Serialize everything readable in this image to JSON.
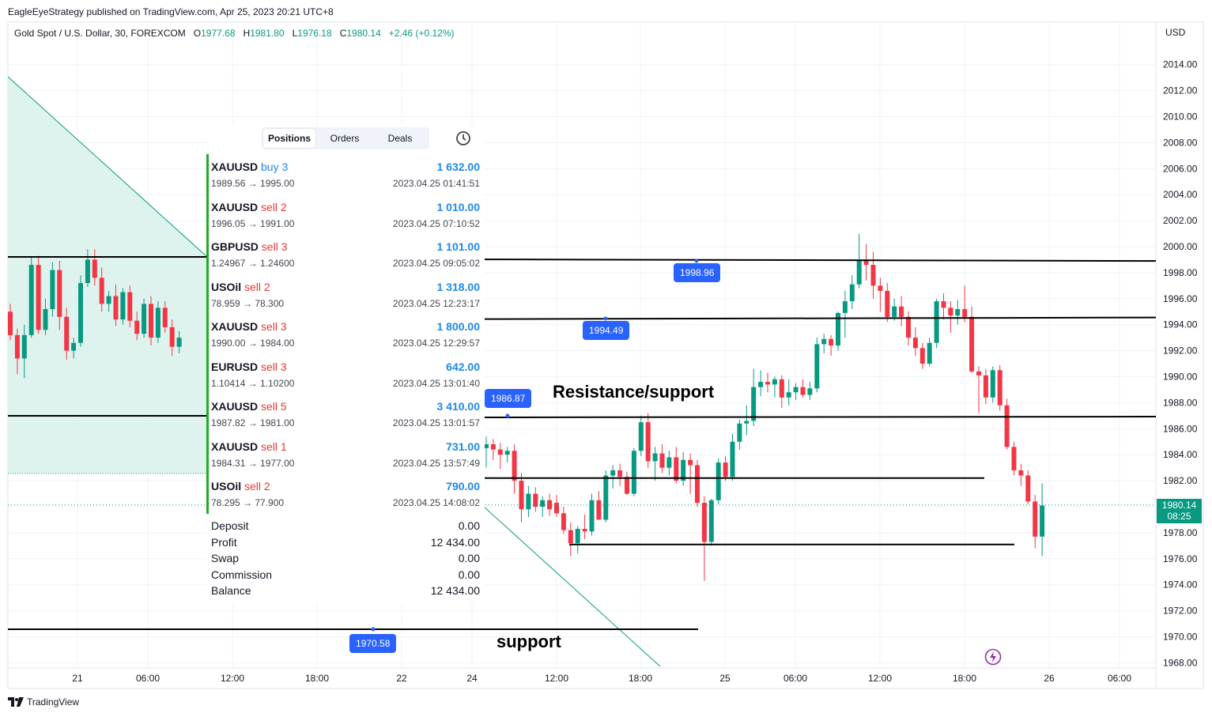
{
  "header": {
    "published": "EagleEyeStrategy published on TradingView.com, Apr 25, 2023 20:21 UTC+8",
    "symbol": "Gold Spot / U.S. Dollar, 30, FOREXCOM",
    "o_label": "O",
    "o_value": "1977.68",
    "h_label": "H",
    "h_value": "1981.80",
    "l_label": "L",
    "l_value": "1976.18",
    "c_label": "C",
    "c_value": "1980.14",
    "change": "+2.46 (+0.12%)",
    "currency": "USD"
  },
  "footer": {
    "brand": "TradingView"
  },
  "panel": {
    "tabs": [
      "Positions",
      "Orders",
      "Deals"
    ],
    "active_tab": "Positions",
    "positions": [
      {
        "symbol": "XAUUSD",
        "side": "buy 3",
        "prices": "1989.56 → 1995.00",
        "amount": "1 632.00",
        "time": "2023.04.25 01:41:51",
        "side_color": "#1e88e5"
      },
      {
        "symbol": "XAUUSD",
        "side": "sell 2",
        "prices": "1996.05 → 1991.00",
        "amount": "1 010.00",
        "time": "2023.04.25 07:10:52",
        "side_color": "#e53935"
      },
      {
        "symbol": "GBPUSD",
        "side": "sell 3",
        "prices": "1.24967 → 1.24600",
        "amount": "1 101.00",
        "time": "2023.04.25 09:05:02",
        "side_color": "#e53935"
      },
      {
        "symbol": "USOil",
        "side": "sell 2",
        "prices": "78.959 → 78.300",
        "amount": "1 318.00",
        "time": "2023.04.25 12:23:17",
        "side_color": "#e53935"
      },
      {
        "symbol": "XAUUSD",
        "side": "sell 3",
        "prices": "1990.00 → 1984.00",
        "amount": "1 800.00",
        "time": "2023.04.25 12:29:57",
        "side_color": "#e53935"
      },
      {
        "symbol": "EURUSD",
        "side": "sell 3",
        "prices": "1.10414 → 1.10200",
        "amount": "642.00",
        "time": "2023.04.25 13:01:40",
        "side_color": "#e53935"
      },
      {
        "symbol": "XAUUSD",
        "side": "sell 5",
        "prices": "1987.82 → 1981.00",
        "amount": "3 410.00",
        "time": "2023.04.25 13:01:57",
        "side_color": "#e53935"
      },
      {
        "symbol": "XAUUSD",
        "side": "sell 1",
        "prices": "1984.31 → 1977.00",
        "amount": "731.00",
        "time": "2023.04.25 13:57:49",
        "side_color": "#e53935"
      },
      {
        "symbol": "USOil",
        "side": "sell 2",
        "prices": "78.295 → 77.900",
        "amount": "790.00",
        "time": "2023.04.25 14:08:02",
        "side_color": "#e53935"
      }
    ],
    "summary": [
      {
        "label": "Deposit",
        "value": "0.00"
      },
      {
        "label": "Profit",
        "value": "12 434.00"
      },
      {
        "label": "Swap",
        "value": "0.00"
      },
      {
        "label": "Commission",
        "value": "0.00"
      },
      {
        "label": "Balance",
        "value": "12 434.00"
      }
    ]
  },
  "annotations": {
    "resistance": "Resistance/support",
    "support": "support"
  },
  "price_tags": [
    "1998.96",
    "1994.49",
    "1986.87",
    "1970.58"
  ],
  "last_price": {
    "value": "1980.14",
    "countdown": "08:25"
  },
  "colors": {
    "up": "#089981",
    "down": "#f23645",
    "tag": "#2962ff"
  },
  "chart_data": {
    "type": "candlestick",
    "title": "Gold Spot / U.S. Dollar, 30, FOREXCOM",
    "ylim": [
      1967,
      2015
    ],
    "y_ticks": [
      "2014.00",
      "2012.00",
      "2010.00",
      "2008.00",
      "2006.00",
      "2004.00",
      "2002.00",
      "2000.00",
      "1998.00",
      "1996.00",
      "1994.00",
      "1992.00",
      "1990.00",
      "1988.00",
      "1986.00",
      "1984.00",
      "1982.00",
      "1980.00",
      "1978.00",
      "1976.00",
      "1974.00",
      "1972.00",
      "1970.00",
      "1968.00"
    ],
    "x_ticks": [
      "21",
      "06:00",
      "12:00",
      "18:00",
      "22",
      "24",
      "12:00",
      "18:00",
      "25",
      "06:00",
      "12:00",
      "18:00",
      "26",
      "06:00"
    ],
    "horizontal_levels": [
      1998.96,
      1994.49,
      1986.87,
      1982.2,
      1977.1,
      1970.58
    ],
    "last_close": 1980.14,
    "candles": [
      [
        1984.5,
        1985.4,
        1983.0,
        1984.8
      ],
      [
        1984.8,
        1985.2,
        1983.6,
        1984.4
      ],
      [
        1984.4,
        1984.9,
        1982.9,
        1984.0
      ],
      [
        1984.0,
        1984.6,
        1983.4,
        1984.3
      ],
      [
        1984.3,
        1984.8,
        1981.0,
        1982.0
      ],
      [
        1982.0,
        1982.6,
        1978.8,
        1979.8
      ],
      [
        1979.8,
        1981.6,
        1979.2,
        1981.0
      ],
      [
        1981.0,
        1981.5,
        1979.6,
        1980.0
      ],
      [
        1980.0,
        1980.8,
        1979.2,
        1980.5
      ],
      [
        1980.5,
        1981.0,
        1979.3,
        1979.8
      ],
      [
        1980.3,
        1980.9,
        1979.2,
        1979.5
      ],
      [
        1979.5,
        1980.0,
        1977.9,
        1978.2
      ],
      [
        1978.2,
        1978.8,
        1976.2,
        1977.2
      ],
      [
        1977.2,
        1978.5,
        1976.4,
        1978.3
      ],
      [
        1978.3,
        1979.4,
        1977.5,
        1978.1
      ],
      [
        1978.1,
        1981.0,
        1977.8,
        1980.5
      ],
      [
        1980.5,
        1981.2,
        1979.3,
        1979.0
      ],
      [
        1979.0,
        1982.8,
        1978.8,
        1982.4
      ],
      [
        1982.4,
        1983.2,
        1981.4,
        1982.8
      ],
      [
        1982.8,
        1983.3,
        1981.6,
        1982.3
      ],
      [
        1982.3,
        1982.7,
        1980.9,
        1981.0
      ],
      [
        1981.0,
        1984.5,
        1980.8,
        1984.3
      ],
      [
        1984.3,
        1987.0,
        1983.9,
        1986.5
      ],
      [
        1986.5,
        1987.2,
        1983.0,
        1983.5
      ],
      [
        1983.5,
        1984.6,
        1982.0,
        1984.1
      ],
      [
        1984.1,
        1984.8,
        1982.6,
        1983.0
      ],
      [
        1983.0,
        1984.3,
        1982.4,
        1983.8
      ],
      [
        1983.8,
        1984.6,
        1981.8,
        1982.0
      ],
      [
        1982.0,
        1984.2,
        1981.6,
        1983.6
      ],
      [
        1983.6,
        1984.1,
        1981.0,
        1983.2
      ],
      [
        1983.2,
        1983.6,
        1980.0,
        1980.3
      ],
      [
        1980.3,
        1980.8,
        1974.3,
        1977.3
      ],
      [
        1977.3,
        1980.6,
        1977.0,
        1980.5
      ],
      [
        1980.5,
        1983.7,
        1980.2,
        1983.4
      ],
      [
        1983.4,
        1983.9,
        1982.0,
        1982.3
      ],
      [
        1982.3,
        1985.6,
        1982.0,
        1985.0
      ],
      [
        1985.0,
        1986.7,
        1984.4,
        1986.4
      ],
      [
        1986.4,
        1987.8,
        1985.5,
        1986.6
      ],
      [
        1986.6,
        1990.6,
        1986.2,
        1989.2
      ],
      [
        1989.2,
        1990.5,
        1988.5,
        1989.6
      ],
      [
        1989.6,
        1990.3,
        1988.8,
        1989.4
      ],
      [
        1989.4,
        1990.0,
        1988.4,
        1989.8
      ],
      [
        1989.8,
        1990.1,
        1987.6,
        1988.4
      ],
      [
        1988.4,
        1989.8,
        1987.8,
        1988.8
      ],
      [
        1988.8,
        1989.5,
        1988.2,
        1989.2
      ],
      [
        1989.2,
        1989.8,
        1988.4,
        1988.6
      ],
      [
        1988.6,
        1989.6,
        1988.2,
        1989.1
      ],
      [
        1989.1,
        1993.0,
        1988.8,
        1992.5
      ],
      [
        1992.5,
        1993.3,
        1991.8,
        1992.9
      ],
      [
        1992.9,
        1993.2,
        1991.6,
        1992.4
      ],
      [
        1992.4,
        1995.0,
        1992.0,
        1994.9
      ],
      [
        1994.9,
        1996.6,
        1993.0,
        1995.8
      ],
      [
        1995.8,
        1997.8,
        1995.2,
        1997.1
      ],
      [
        1997.1,
        2001.0,
        1996.8,
        1999.0
      ],
      [
        1999.0,
        2000.2,
        1997.4,
        1998.6
      ],
      [
        1998.6,
        1999.6,
        1996.0,
        1997.0
      ],
      [
        1997.0,
        1997.6,
        1995.0,
        1996.6
      ],
      [
        1996.6,
        1997.2,
        1994.2,
        1994.6
      ],
      [
        1994.6,
        1996.0,
        1994.3,
        1995.4
      ],
      [
        1995.4,
        1996.2,
        1993.9,
        1994.6
      ],
      [
        1994.6,
        1995.0,
        1992.4,
        1993.0
      ],
      [
        1993.0,
        1993.8,
        1991.6,
        1992.2
      ],
      [
        1992.2,
        1992.6,
        1990.6,
        1991.0
      ],
      [
        1991.0,
        1993.0,
        1990.8,
        1992.6
      ],
      [
        1992.6,
        1996.0,
        1992.2,
        1995.8
      ],
      [
        1995.8,
        1996.4,
        1994.4,
        1995.3
      ],
      [
        1995.3,
        1995.8,
        1993.4,
        1994.7
      ],
      [
        1994.7,
        1995.9,
        1994.0,
        1995.2
      ],
      [
        1995.2,
        1997.0,
        1994.2,
        1994.6
      ],
      [
        1994.6,
        1995.4,
        1990.3,
        1990.4
      ],
      [
        1990.4,
        1990.8,
        1987.2,
        1990.1
      ],
      [
        1990.1,
        1990.6,
        1987.9,
        1988.4
      ],
      [
        1988.4,
        1990.8,
        1988.0,
        1990.5
      ],
      [
        1990.5,
        1990.9,
        1987.4,
        1987.8
      ],
      [
        1987.8,
        1988.3,
        1984.4,
        1984.6
      ],
      [
        1984.6,
        1985.0,
        1982.4,
        1982.8
      ],
      [
        1982.8,
        1983.3,
        1981.6,
        1982.4
      ],
      [
        1982.4,
        1982.8,
        1980.2,
        1980.4
      ],
      [
        1980.4,
        1980.9,
        1976.8,
        1977.7
      ],
      [
        1977.7,
        1981.8,
        1976.2,
        1980.1
      ]
    ],
    "left_candles": [
      [
        1995.0,
        1995.6,
        1992.8,
        1993.2
      ],
      [
        1993.2,
        1993.7,
        1990.2,
        1991.4
      ],
      [
        1991.4,
        1994.0,
        1989.9,
        1993.2
      ],
      [
        1993.2,
        1999.2,
        1993.0,
        1998.6
      ],
      [
        1998.6,
        1999.3,
        1993.3,
        1993.6
      ],
      [
        1993.6,
        1996.0,
        1993.2,
        1995.2
      ],
      [
        1995.2,
        1998.8,
        1994.6,
        1998.2
      ],
      [
        1998.2,
        1998.9,
        1993.6,
        1994.6
      ],
      [
        1994.6,
        1995.3,
        1991.3,
        1992.0
      ],
      [
        1992.0,
        1993.0,
        1991.4,
        1992.6
      ],
      [
        1992.6,
        1997.8,
        1992.3,
        1997.2
      ],
      [
        1997.2,
        1999.8,
        1996.9,
        1999.0
      ],
      [
        1999.0,
        1999.8,
        1997.0,
        1997.6
      ],
      [
        1997.6,
        1998.4,
        1995.0,
        1995.6
      ],
      [
        1995.6,
        1996.6,
        1995.0,
        1996.2
      ],
      [
        1996.2,
        1997.1,
        1993.9,
        1994.4
      ],
      [
        1994.4,
        1996.8,
        1994.0,
        1996.5
      ],
      [
        1996.5,
        1997.0,
        1993.8,
        1994.3
      ],
      [
        1994.3,
        1995.0,
        1992.8,
        1993.3
      ],
      [
        1993.3,
        1996.0,
        1993.0,
        1995.6
      ],
      [
        1995.6,
        1996.2,
        1992.4,
        1993.0
      ],
      [
        1993.0,
        1995.8,
        1992.6,
        1995.3
      ],
      [
        1995.3,
        1995.8,
        1993.4,
        1993.8
      ],
      [
        1993.8,
        1994.4,
        1991.6,
        1992.3
      ],
      [
        1992.3,
        1993.5,
        1991.8,
        1993.0
      ]
    ]
  }
}
